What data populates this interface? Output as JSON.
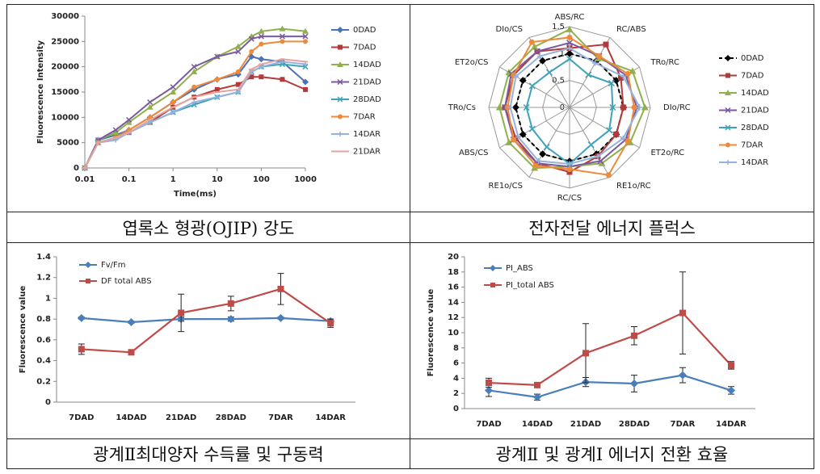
{
  "chart_data": [
    {
      "type": "line",
      "caption": "엽록소 형광(OJIP) 강도",
      "x_label": "Time(ms)",
      "y_label": "Fluorescence Intensity",
      "xscale": "log",
      "x": [
        0.01,
        0.02,
        0.05,
        0.1,
        0.3,
        1,
        3,
        10,
        30,
        60,
        100,
        300,
        1000
      ],
      "xlim": [
        0.01,
        1000
      ],
      "xticks": [
        0.01,
        0.1,
        1,
        10,
        100,
        1000
      ],
      "ylim": [
        0,
        30000
      ],
      "yticks": [
        0,
        5000,
        10000,
        15000,
        20000,
        25000,
        30000
      ],
      "series": [
        {
          "name": "0DAD",
          "color": "#4a72b8",
          "values": [
            0,
            5500,
            6500,
            7500,
            10000,
            13000,
            15500,
            17500,
            18500,
            22000,
            21500,
            21000,
            17000
          ]
        },
        {
          "name": "7DAD",
          "color": "#b33a3a",
          "values": [
            0,
            5000,
            6000,
            7000,
            9000,
            12000,
            14000,
            15500,
            16500,
            18000,
            18000,
            17500,
            15500
          ]
        },
        {
          "name": "14DAD",
          "color": "#8fb04a",
          "values": [
            0,
            5500,
            7000,
            9000,
            12000,
            15000,
            19000,
            22000,
            24000,
            26000,
            27000,
            27500,
            27000
          ]
        },
        {
          "name": "21DAD",
          "color": "#7a5a9e",
          "values": [
            0,
            5500,
            7500,
            9500,
            13000,
            16000,
            20000,
            22000,
            23000,
            25500,
            26000,
            26000,
            26000
          ]
        },
        {
          "name": "28DAD",
          "color": "#3ea3b8",
          "values": [
            0,
            5000,
            6000,
            7000,
            9000,
            11000,
            12500,
            14000,
            15000,
            19000,
            20000,
            20500,
            20000
          ]
        },
        {
          "name": "7DAR",
          "color": "#ee8a3a",
          "values": [
            0,
            5000,
            6000,
            7500,
            10000,
            13000,
            16000,
            17500,
            19000,
            23000,
            24500,
            25000,
            25000
          ]
        },
        {
          "name": "14DAR",
          "color": "#95b2dd",
          "values": [
            0,
            5000,
            5500,
            7000,
            9000,
            11000,
            13000,
            14000,
            15000,
            19000,
            20000,
            21000,
            20500
          ]
        },
        {
          "name": "21DAR",
          "color": "#e3a4a0",
          "values": [
            0,
            5000,
            6000,
            7000,
            9500,
            12000,
            14000,
            15000,
            15500,
            19500,
            20500,
            21500,
            21000
          ]
        }
      ]
    },
    {
      "type": "radar",
      "caption": "전자전달 에너지 플럭스",
      "categories": [
        "ABS/RC",
        "RC/ABS",
        "TRo/RC",
        "DIo/RC",
        "ET2o/RC",
        "RE1o/RC",
        "RC/CS",
        "RE1o/CS",
        "ABS/CS",
        "TRo/Cs",
        "ET2o/CS",
        "DIo/CS"
      ],
      "rlim": [
        0,
        1.5
      ],
      "rticks": [
        0,
        0.5,
        1,
        1.5
      ],
      "series": [
        {
          "name": "0DAD",
          "color": "#000000",
          "line_style": "dashed",
          "values": [
            1,
            1,
            1,
            1,
            1,
            1,
            1,
            1,
            1,
            1,
            1,
            1
          ]
        },
        {
          "name": "7DAD",
          "color": "#b33a3a",
          "values": [
            1.1,
            1.35,
            1.1,
            1.0,
            1.0,
            1.05,
            1.2,
            1.2,
            1.15,
            1.2,
            1.2,
            1.2
          ]
        },
        {
          "name": "14DAD",
          "color": "#8fb04a",
          "values": [
            1.45,
            1.05,
            1.35,
            1.4,
            1.3,
            1.2,
            1.1,
            1.3,
            1.3,
            1.3,
            1.3,
            1.3
          ]
        },
        {
          "name": "21DAD",
          "color": "#7a5a9e",
          "values": [
            1.2,
            1.1,
            1.2,
            1.25,
            1.2,
            1.15,
            1.1,
            1.2,
            1.2,
            1.2,
            1.25,
            1.2
          ]
        },
        {
          "name": "28DAD",
          "color": "#3ea3b8",
          "values": [
            0.9,
            0.7,
            0.9,
            0.8,
            0.85,
            0.8,
            1.05,
            0.85,
            0.8,
            0.8,
            0.8,
            0.75
          ]
        },
        {
          "name": "7DAR",
          "color": "#ee8a3a",
          "values": [
            1.3,
            1.1,
            1.25,
            1.2,
            1.25,
            1.45,
            1.15,
            1.25,
            1.2,
            1.15,
            1.2,
            1.4
          ]
        },
        {
          "name": "14DAR",
          "color": "#95b2dd",
          "values": [
            1.1,
            0.95,
            1.15,
            1.3,
            1.15,
            1.05,
            1.05,
            1.15,
            1.1,
            1.1,
            1.15,
            1.1
          ]
        }
      ]
    },
    {
      "type": "line",
      "caption": "광계Ⅱ최대양자 수득률 및 구동력",
      "y_label": "Fluorescence value",
      "categories": [
        "7DAD",
        "14DAD",
        "21DAD",
        "28DAD",
        "7DAR",
        "14DAR"
      ],
      "ylim": [
        0,
        1.4
      ],
      "yticks": [
        0,
        0.2,
        0.4,
        0.6,
        0.8,
        1,
        1.2,
        1.4
      ],
      "series": [
        {
          "name": "Fv/Fm",
          "color": "#4a7ebb",
          "values": [
            0.81,
            0.77,
            0.8,
            0.8,
            0.81,
            0.78
          ],
          "errors": [
            0.01,
            0.01,
            0.02,
            0.02,
            0.01,
            0.02
          ]
        },
        {
          "name": "DF total ABS",
          "color": "#be4b48",
          "values": [
            0.51,
            0.48,
            0.86,
            0.95,
            1.09,
            0.76
          ],
          "errors": [
            0.05,
            0.01,
            0.18,
            0.07,
            0.15,
            0.04
          ]
        }
      ]
    },
    {
      "type": "line",
      "caption": "광계Ⅱ 및 광계Ⅰ 에너지 전환 효율",
      "y_label": "Fluorescence value",
      "categories": [
        "7DAD",
        "14DAD",
        "21DAD",
        "28DAD",
        "7DAR",
        "14DAR"
      ],
      "ylim": [
        0,
        20
      ],
      "yticks": [
        0,
        2,
        4,
        6,
        8,
        10,
        12,
        14,
        16,
        18,
        20
      ],
      "series": [
        {
          "name": "PI_ABS",
          "color": "#4a7ebb",
          "values": [
            2.4,
            1.5,
            3.5,
            3.3,
            4.4,
            2.4
          ],
          "errors": [
            0.8,
            0.4,
            0.6,
            1.1,
            1.0,
            0.5
          ]
        },
        {
          "name": "PI_total ABS",
          "color": "#be4b48",
          "values": [
            3.4,
            3.1,
            7.3,
            9.6,
            12.6,
            5.7
          ],
          "errors": [
            0.6,
            0.2,
            3.9,
            1.2,
            5.4,
            0.5
          ]
        }
      ]
    }
  ]
}
